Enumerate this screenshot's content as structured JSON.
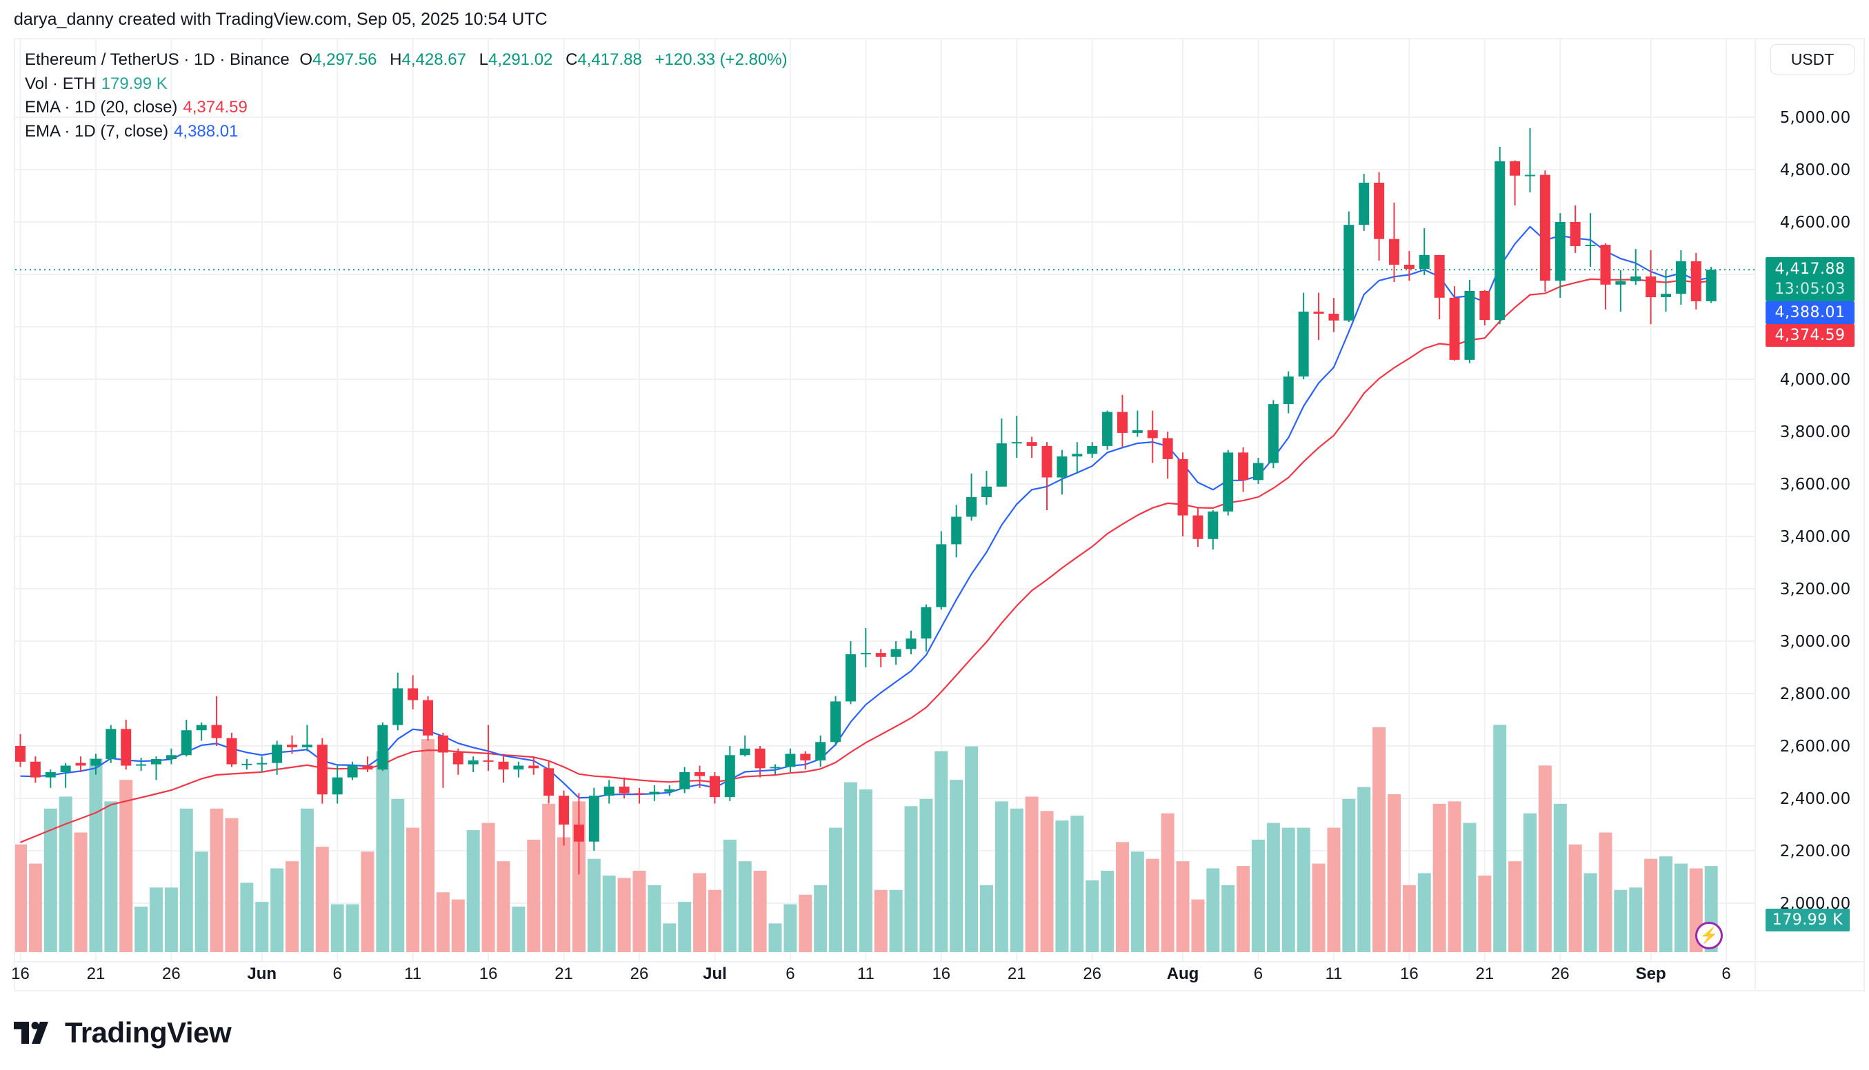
{
  "credit": "darya_danny created with TradingView.com, Sep 05, 2025 10:54 UTC",
  "legend": {
    "symbol": "Ethereum / TetherUS · 1D · Binance",
    "o_label": "O",
    "o": "4,297.56",
    "h_label": "H",
    "h": "4,428.67",
    "l_label": "L",
    "l": "4,291.02",
    "c_label": "C",
    "c": "4,417.88",
    "change": "+120.33 (+2.80%)",
    "vol_label": "Vol · ETH",
    "vol": "179.99 K",
    "ema20_label": "EMA · 1D (20, close)",
    "ema20": "4,374.59",
    "ema7_label": "EMA · 1D (7, close)",
    "ema7": "4,388.01"
  },
  "axis": {
    "currency_button": "USDT",
    "last_price": "4,417.88",
    "countdown": "13:05:03",
    "ema7_tag": "4,388.01",
    "ema20_tag": "4,374.59",
    "vol_tag": "179.99 K"
  },
  "brand": "TradingView",
  "colors": {
    "up": "#089981",
    "down": "#f23645",
    "ema20": "#f23645",
    "ema7": "#2962ff",
    "vol_up": "#92d2cc",
    "vol_down": "#f7a9a7",
    "grid": "#f0f1f4"
  },
  "chart_data": {
    "type": "candlestick",
    "x_start": "2025-05-16",
    "ylim": [
      1700,
      5150
    ],
    "y_ticks": [
      "5,000.00",
      "4,800.00",
      "4,600.00",
      "4,000.00",
      "3,800.00",
      "3,600.00",
      "3,400.00",
      "3,200.00",
      "3,000.00",
      "2,800.00",
      "2,600.00",
      "2,400.00",
      "2,200.00",
      "2,000.00"
    ],
    "y_tick_values": [
      5000,
      4800,
      4600,
      4000,
      3800,
      3600,
      3400,
      3200,
      3000,
      2800,
      2600,
      2400,
      2200,
      2000
    ],
    "grid_values": [
      5000,
      4800,
      4600,
      4400,
      4200,
      4000,
      3800,
      3600,
      3400,
      3200,
      3000,
      2800,
      2600,
      2400,
      2200,
      2000
    ],
    "x_ticks": [
      {
        "label": "16",
        "date": "2025-05-16"
      },
      {
        "label": "21",
        "date": "2025-05-21"
      },
      {
        "label": "26",
        "date": "2025-05-26"
      },
      {
        "label": "Jun",
        "date": "2025-06-01",
        "bold": true
      },
      {
        "label": "6",
        "date": "2025-06-06"
      },
      {
        "label": "11",
        "date": "2025-06-11"
      },
      {
        "label": "16",
        "date": "2025-06-16"
      },
      {
        "label": "21",
        "date": "2025-06-21"
      },
      {
        "label": "26",
        "date": "2025-06-26"
      },
      {
        "label": "Jul",
        "date": "2025-07-01",
        "bold": true
      },
      {
        "label": "6",
        "date": "2025-07-06"
      },
      {
        "label": "11",
        "date": "2025-07-11"
      },
      {
        "label": "16",
        "date": "2025-07-16"
      },
      {
        "label": "21",
        "date": "2025-07-21"
      },
      {
        "label": "26",
        "date": "2025-07-26"
      },
      {
        "label": "Aug",
        "date": "2025-08-01",
        "bold": true
      },
      {
        "label": "6",
        "date": "2025-08-06"
      },
      {
        "label": "11",
        "date": "2025-08-11"
      },
      {
        "label": "16",
        "date": "2025-08-16"
      },
      {
        "label": "21",
        "date": "2025-08-21"
      },
      {
        "label": "26",
        "date": "2025-08-26"
      },
      {
        "label": "Sep",
        "date": "2025-09-01",
        "bold": true
      },
      {
        "label": "6",
        "date": "2025-09-06"
      }
    ],
    "last_price": 4417.88,
    "ohlc": [
      [
        2600,
        2645,
        2520,
        2540
      ],
      [
        2540,
        2560,
        2460,
        2480
      ],
      [
        2480,
        2510,
        2440,
        2500
      ],
      [
        2500,
        2535,
        2440,
        2525
      ],
      [
        2535,
        2560,
        2500,
        2525
      ],
      [
        2525,
        2570,
        2490,
        2550
      ],
      [
        2550,
        2680,
        2535,
        2665
      ],
      [
        2665,
        2700,
        2510,
        2525
      ],
      [
        2525,
        2555,
        2505,
        2530
      ],
      [
        2530,
        2560,
        2470,
        2550
      ],
      [
        2550,
        2590,
        2530,
        2565
      ],
      [
        2565,
        2700,
        2560,
        2660
      ],
      [
        2660,
        2690,
        2620,
        2680
      ],
      [
        2680,
        2790,
        2600,
        2630
      ],
      [
        2630,
        2650,
        2520,
        2530
      ],
      [
        2530,
        2550,
        2510,
        2532
      ],
      [
        2530,
        2560,
        2500,
        2535
      ],
      [
        2535,
        2620,
        2490,
        2605
      ],
      [
        2605,
        2640,
        2570,
        2595
      ],
      [
        2595,
        2680,
        2580,
        2605
      ],
      [
        2605,
        2630,
        2380,
        2415
      ],
      [
        2415,
        2530,
        2380,
        2480
      ],
      [
        2480,
        2540,
        2470,
        2525
      ],
      [
        2525,
        2560,
        2500,
        2510
      ],
      [
        2510,
        2690,
        2505,
        2680
      ],
      [
        2680,
        2880,
        2660,
        2820
      ],
      [
        2820,
        2870,
        2740,
        2775
      ],
      [
        2775,
        2790,
        2620,
        2640
      ],
      [
        2640,
        2650,
        2440,
        2575
      ],
      [
        2575,
        2590,
        2490,
        2530
      ],
      [
        2530,
        2560,
        2500,
        2545
      ],
      [
        2545,
        2680,
        2505,
        2540
      ],
      [
        2540,
        2570,
        2460,
        2510
      ],
      [
        2510,
        2540,
        2480,
        2525
      ],
      [
        2525,
        2560,
        2490,
        2515
      ],
      [
        2515,
        2540,
        2380,
        2410
      ],
      [
        2410,
        2430,
        2220,
        2300
      ],
      [
        2300,
        2420,
        2110,
        2235
      ],
      [
        2235,
        2440,
        2200,
        2410
      ],
      [
        2410,
        2470,
        2380,
        2445
      ],
      [
        2445,
        2480,
        2400,
        2420
      ],
      [
        2420,
        2440,
        2380,
        2415
      ],
      [
        2415,
        2450,
        2390,
        2425
      ],
      [
        2425,
        2450,
        2410,
        2435
      ],
      [
        2435,
        2520,
        2420,
        2500
      ],
      [
        2500,
        2525,
        2440,
        2485
      ],
      [
        2485,
        2500,
        2380,
        2405
      ],
      [
        2405,
        2600,
        2390,
        2565
      ],
      [
        2565,
        2640,
        2560,
        2590
      ],
      [
        2590,
        2600,
        2480,
        2515
      ],
      [
        2515,
        2530,
        2490,
        2520
      ],
      [
        2520,
        2590,
        2500,
        2570
      ],
      [
        2570,
        2580,
        2510,
        2545
      ],
      [
        2545,
        2640,
        2520,
        2615
      ],
      [
        2615,
        2790,
        2600,
        2770
      ],
      [
        2770,
        3000,
        2760,
        2950
      ],
      [
        2950,
        3050,
        2900,
        2955
      ],
      [
        2955,
        2970,
        2900,
        2940
      ],
      [
        2940,
        3000,
        2910,
        2970
      ],
      [
        2970,
        3040,
        2950,
        3010
      ],
      [
        3010,
        3140,
        2960,
        3130
      ],
      [
        3130,
        3420,
        3120,
        3370
      ],
      [
        3370,
        3520,
        3320,
        3475
      ],
      [
        3475,
        3640,
        3460,
        3550
      ],
      [
        3550,
        3650,
        3520,
        3590
      ],
      [
        3590,
        3850,
        3590,
        3755
      ],
      [
        3755,
        3860,
        3700,
        3760
      ],
      [
        3760,
        3780,
        3700,
        3745
      ],
      [
        3745,
        3760,
        3500,
        3625
      ],
      [
        3625,
        3730,
        3560,
        3705
      ],
      [
        3705,
        3760,
        3640,
        3715
      ],
      [
        3715,
        3760,
        3700,
        3745
      ],
      [
        3745,
        3880,
        3730,
        3875
      ],
      [
        3875,
        3940,
        3740,
        3795
      ],
      [
        3795,
        3880,
        3780,
        3805
      ],
      [
        3805,
        3880,
        3680,
        3775
      ],
      [
        3775,
        3800,
        3620,
        3695
      ],
      [
        3695,
        3720,
        3400,
        3480
      ],
      [
        3480,
        3510,
        3360,
        3390
      ],
      [
        3390,
        3500,
        3350,
        3495
      ],
      [
        3495,
        3730,
        3480,
        3720
      ],
      [
        3720,
        3740,
        3570,
        3615
      ],
      [
        3615,
        3700,
        3600,
        3680
      ],
      [
        3680,
        3920,
        3660,
        3905
      ],
      [
        3905,
        4030,
        3870,
        4010
      ],
      [
        4010,
        4330,
        4000,
        4258
      ],
      [
        4258,
        4330,
        4150,
        4250
      ],
      [
        4250,
        4310,
        4180,
        4224
      ],
      [
        4224,
        4640,
        4218,
        4589
      ],
      [
        4589,
        4784,
        4566,
        4750
      ],
      [
        4750,
        4790,
        4453,
        4535
      ],
      [
        4535,
        4674,
        4371,
        4437
      ],
      [
        4437,
        4489,
        4376,
        4421
      ],
      [
        4421,
        4576,
        4397,
        4474
      ],
      [
        4474,
        4474,
        4229,
        4311
      ],
      [
        4311,
        4355,
        4071,
        4074
      ],
      [
        4074,
        4379,
        4061,
        4337
      ],
      [
        4337,
        4340,
        4205,
        4226
      ],
      [
        4226,
        4887,
        4210,
        4832
      ],
      [
        4832,
        4835,
        4663,
        4777
      ],
      [
        4777,
        4958,
        4713,
        4780
      ],
      [
        4780,
        4797,
        4334,
        4376
      ],
      [
        4376,
        4634,
        4311,
        4600
      ],
      [
        4600,
        4663,
        4482,
        4508
      ],
      [
        4508,
        4634,
        4429,
        4513
      ],
      [
        4513,
        4518,
        4266,
        4361
      ],
      [
        4361,
        4416,
        4258,
        4374
      ],
      [
        4374,
        4497,
        4360,
        4392
      ],
      [
        4392,
        4492,
        4210,
        4313
      ],
      [
        4313,
        4416,
        4258,
        4326
      ],
      [
        4326,
        4492,
        4284,
        4450
      ],
      [
        4450,
        4482,
        4266,
        4297.56
      ],
      [
        4297.56,
        4428.67,
        4291.02,
        4417.88
      ]
    ],
    "volume_k": [
      225,
      185,
      300,
      325,
      250,
      405,
      315,
      360,
      95,
      135,
      135,
      300,
      210,
      300,
      280,
      145,
      105,
      175,
      190,
      300,
      220,
      100,
      100,
      210,
      420,
      320,
      260,
      445,
      125,
      110,
      255,
      270,
      190,
      95,
      235,
      310,
      240,
      315,
      195,
      160,
      155,
      170,
      140,
      60,
      105,
      165,
      130,
      235,
      190,
      170,
      60,
      100,
      120,
      140,
      260,
      355,
      340,
      130,
      130,
      305,
      320,
      420,
      360,
      430,
      140,
      315,
      300,
      325,
      295,
      275,
      285,
      150,
      170,
      230,
      210,
      195,
      290,
      190,
      110,
      175,
      140,
      180,
      235,
      270,
      260,
      260,
      185,
      260,
      320,
      345,
      470,
      330,
      140,
      165,
      310,
      315,
      270,
      160,
      475,
      190,
      290,
      390,
      310,
      225,
      165,
      250,
      130,
      135,
      195,
      200,
      185,
      175,
      179.99
    ],
    "indicators": [
      {
        "name": "EMA · 1D (20, close)",
        "period": 20,
        "values_begin_at": 2232,
        "color": "#f23645"
      },
      {
        "name": "EMA · 1D (7, close)",
        "period": 7,
        "values_begin_at": 2485,
        "color": "#2962ff"
      }
    ]
  }
}
